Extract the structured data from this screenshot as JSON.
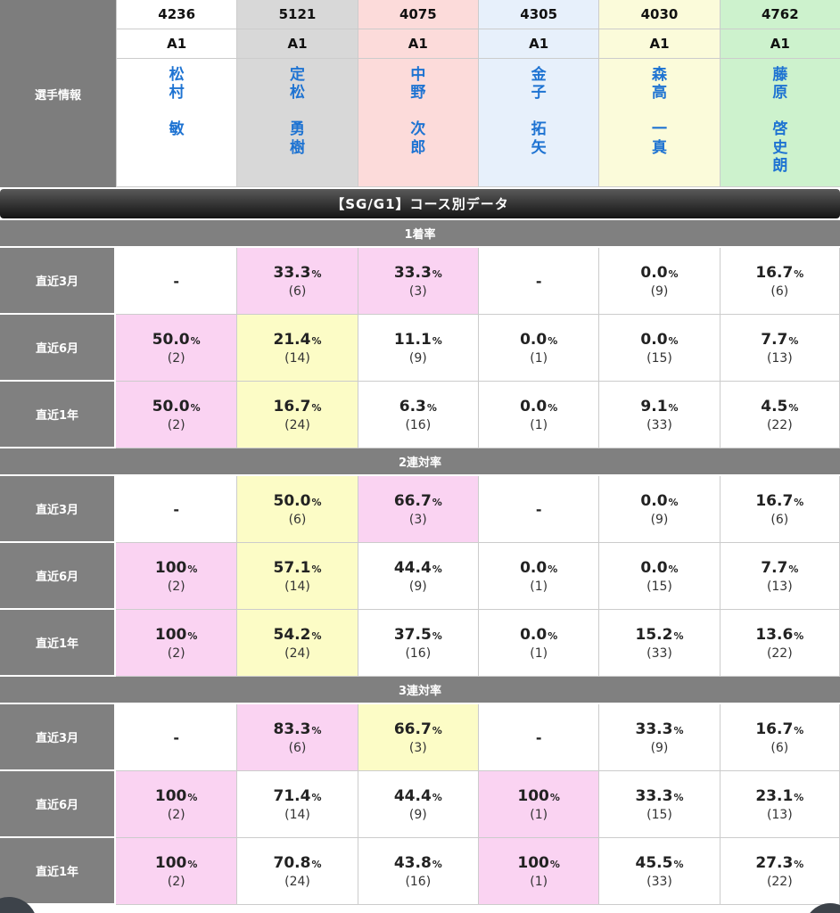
{
  "percent_sign": "%",
  "colors": {
    "accent_pink": "#fad3f2",
    "accent_yellow": "#fcfcc6",
    "label_gray": "#808080",
    "link_blue": "#1e73d2",
    "cell_bg": {
      "white": "#ffffff",
      "pink": "#fad3f2",
      "yellow": "#fcfcc6"
    }
  },
  "player_table": {
    "corner_label": "選手情報"
  },
  "players": [
    {
      "number": "4236",
      "class": "A1",
      "name": "松\n村\n\n敏",
      "color": "#ffffff"
    },
    {
      "number": "5121",
      "class": "A1",
      "name": "定\n松\n\n勇\n樹",
      "color": "#d8d8d8"
    },
    {
      "number": "4075",
      "class": "A1",
      "name": "中\n野\n\n次\n郎",
      "color": "#fcdbda"
    },
    {
      "number": "4305",
      "class": "A1",
      "name": "金\n子\n\n拓\n矢",
      "color": "#e7f0fb"
    },
    {
      "number": "4030",
      "class": "A1",
      "name": "森\n高\n\n一\n真",
      "color": "#fbfbda"
    },
    {
      "number": "4762",
      "class": "A1",
      "name": "藤\n原\n\n啓\n史\n朗",
      "color": "#cdf2cd"
    }
  ],
  "course_data": {
    "title": "【SG/G1】コース別データ",
    "sections": [
      {
        "title": "1着率",
        "rows": [
          {
            "label": "直近3月",
            "cells": [
              {
                "value": "-",
                "count": "",
                "bg": "white"
              },
              {
                "value": "33.3",
                "count": "(6)",
                "bg": "pink"
              },
              {
                "value": "33.3",
                "count": "(3)",
                "bg": "pink"
              },
              {
                "value": "-",
                "count": "",
                "bg": "white"
              },
              {
                "value": "0.0",
                "count": "(9)",
                "bg": "white"
              },
              {
                "value": "16.7",
                "count": "(6)",
                "bg": "white"
              }
            ]
          },
          {
            "label": "直近6月",
            "cells": [
              {
                "value": "50.0",
                "count": "(2)",
                "bg": "pink"
              },
              {
                "value": "21.4",
                "count": "(14)",
                "bg": "yellow"
              },
              {
                "value": "11.1",
                "count": "(9)",
                "bg": "white"
              },
              {
                "value": "0.0",
                "count": "(1)",
                "bg": "white"
              },
              {
                "value": "0.0",
                "count": "(15)",
                "bg": "white"
              },
              {
                "value": "7.7",
                "count": "(13)",
                "bg": "white"
              }
            ]
          },
          {
            "label": "直近1年",
            "cells": [
              {
                "value": "50.0",
                "count": "(2)",
                "bg": "pink"
              },
              {
                "value": "16.7",
                "count": "(24)",
                "bg": "yellow"
              },
              {
                "value": "6.3",
                "count": "(16)",
                "bg": "white"
              },
              {
                "value": "0.0",
                "count": "(1)",
                "bg": "white"
              },
              {
                "value": "9.1",
                "count": "(33)",
                "bg": "white"
              },
              {
                "value": "4.5",
                "count": "(22)",
                "bg": "white"
              }
            ]
          }
        ]
      },
      {
        "title": "2連対率",
        "rows": [
          {
            "label": "直近3月",
            "cells": [
              {
                "value": "-",
                "count": "",
                "bg": "white"
              },
              {
                "value": "50.0",
                "count": "(6)",
                "bg": "yellow"
              },
              {
                "value": "66.7",
                "count": "(3)",
                "bg": "pink"
              },
              {
                "value": "-",
                "count": "",
                "bg": "white"
              },
              {
                "value": "0.0",
                "count": "(9)",
                "bg": "white"
              },
              {
                "value": "16.7",
                "count": "(6)",
                "bg": "white"
              }
            ]
          },
          {
            "label": "直近6月",
            "cells": [
              {
                "value": "100",
                "count": "(2)",
                "bg": "pink"
              },
              {
                "value": "57.1",
                "count": "(14)",
                "bg": "yellow"
              },
              {
                "value": "44.4",
                "count": "(9)",
                "bg": "white"
              },
              {
                "value": "0.0",
                "count": "(1)",
                "bg": "white"
              },
              {
                "value": "0.0",
                "count": "(15)",
                "bg": "white"
              },
              {
                "value": "7.7",
                "count": "(13)",
                "bg": "white"
              }
            ]
          },
          {
            "label": "直近1年",
            "cells": [
              {
                "value": "100",
                "count": "(2)",
                "bg": "pink"
              },
              {
                "value": "54.2",
                "count": "(24)",
                "bg": "yellow"
              },
              {
                "value": "37.5",
                "count": "(16)",
                "bg": "white"
              },
              {
                "value": "0.0",
                "count": "(1)",
                "bg": "white"
              },
              {
                "value": "15.2",
                "count": "(33)",
                "bg": "white"
              },
              {
                "value": "13.6",
                "count": "(22)",
                "bg": "white"
              }
            ]
          }
        ]
      },
      {
        "title": "3連対率",
        "rows": [
          {
            "label": "直近3月",
            "cells": [
              {
                "value": "-",
                "count": "",
                "bg": "white"
              },
              {
                "value": "83.3",
                "count": "(6)",
                "bg": "pink"
              },
              {
                "value": "66.7",
                "count": "(3)",
                "bg": "yellow"
              },
              {
                "value": "-",
                "count": "",
                "bg": "white"
              },
              {
                "value": "33.3",
                "count": "(9)",
                "bg": "white"
              },
              {
                "value": "16.7",
                "count": "(6)",
                "bg": "white"
              }
            ]
          },
          {
            "label": "直近6月",
            "cells": [
              {
                "value": "100",
                "count": "(2)",
                "bg": "pink"
              },
              {
                "value": "71.4",
                "count": "(14)",
                "bg": "white"
              },
              {
                "value": "44.4",
                "count": "(9)",
                "bg": "white"
              },
              {
                "value": "100",
                "count": "(1)",
                "bg": "pink"
              },
              {
                "value": "33.3",
                "count": "(15)",
                "bg": "white"
              },
              {
                "value": "23.1",
                "count": "(13)",
                "bg": "white"
              }
            ]
          },
          {
            "label": "直近1年",
            "cells": [
              {
                "value": "100",
                "count": "(2)",
                "bg": "pink"
              },
              {
                "value": "70.8",
                "count": "(24)",
                "bg": "white"
              },
              {
                "value": "43.8",
                "count": "(16)",
                "bg": "white"
              },
              {
                "value": "100",
                "count": "(1)",
                "bg": "pink"
              },
              {
                "value": "45.5",
                "count": "(33)",
                "bg": "white"
              },
              {
                "value": "27.3",
                "count": "(22)",
                "bg": "white"
              }
            ]
          }
        ]
      }
    ]
  }
}
